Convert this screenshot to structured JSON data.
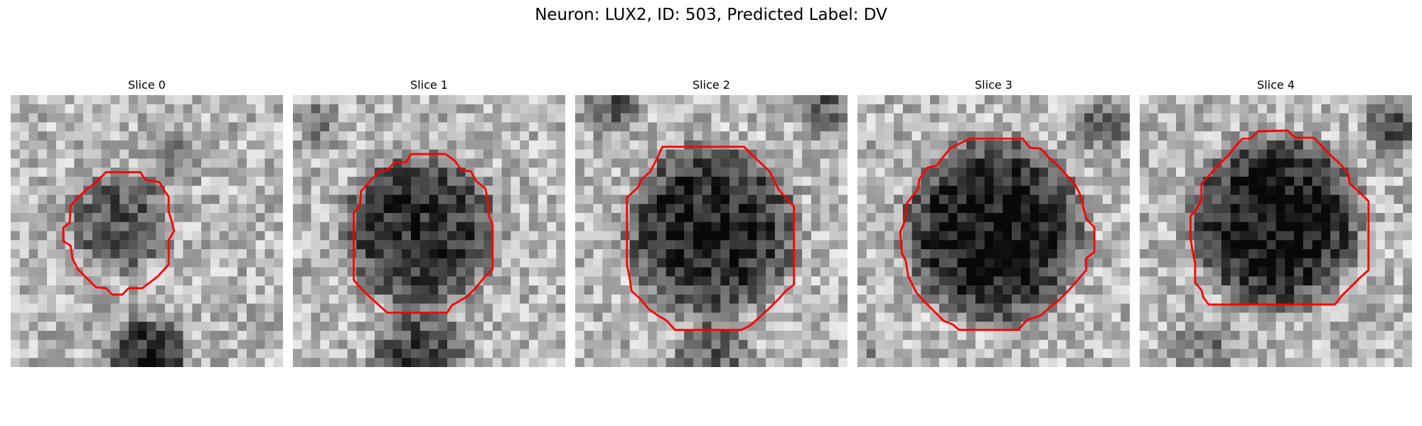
{
  "figure": {
    "title": "Neuron: LUX2, ID: 503, Predicted Label: DV"
  },
  "slices": [
    {
      "label": "Slice 0"
    },
    {
      "label": "Slice 1"
    },
    {
      "label": "Slice 2"
    },
    {
      "label": "Slice 3"
    },
    {
      "label": "Slice 4"
    }
  ],
  "style": {
    "contour_color": "#ff0000",
    "colormap": "gray"
  }
}
